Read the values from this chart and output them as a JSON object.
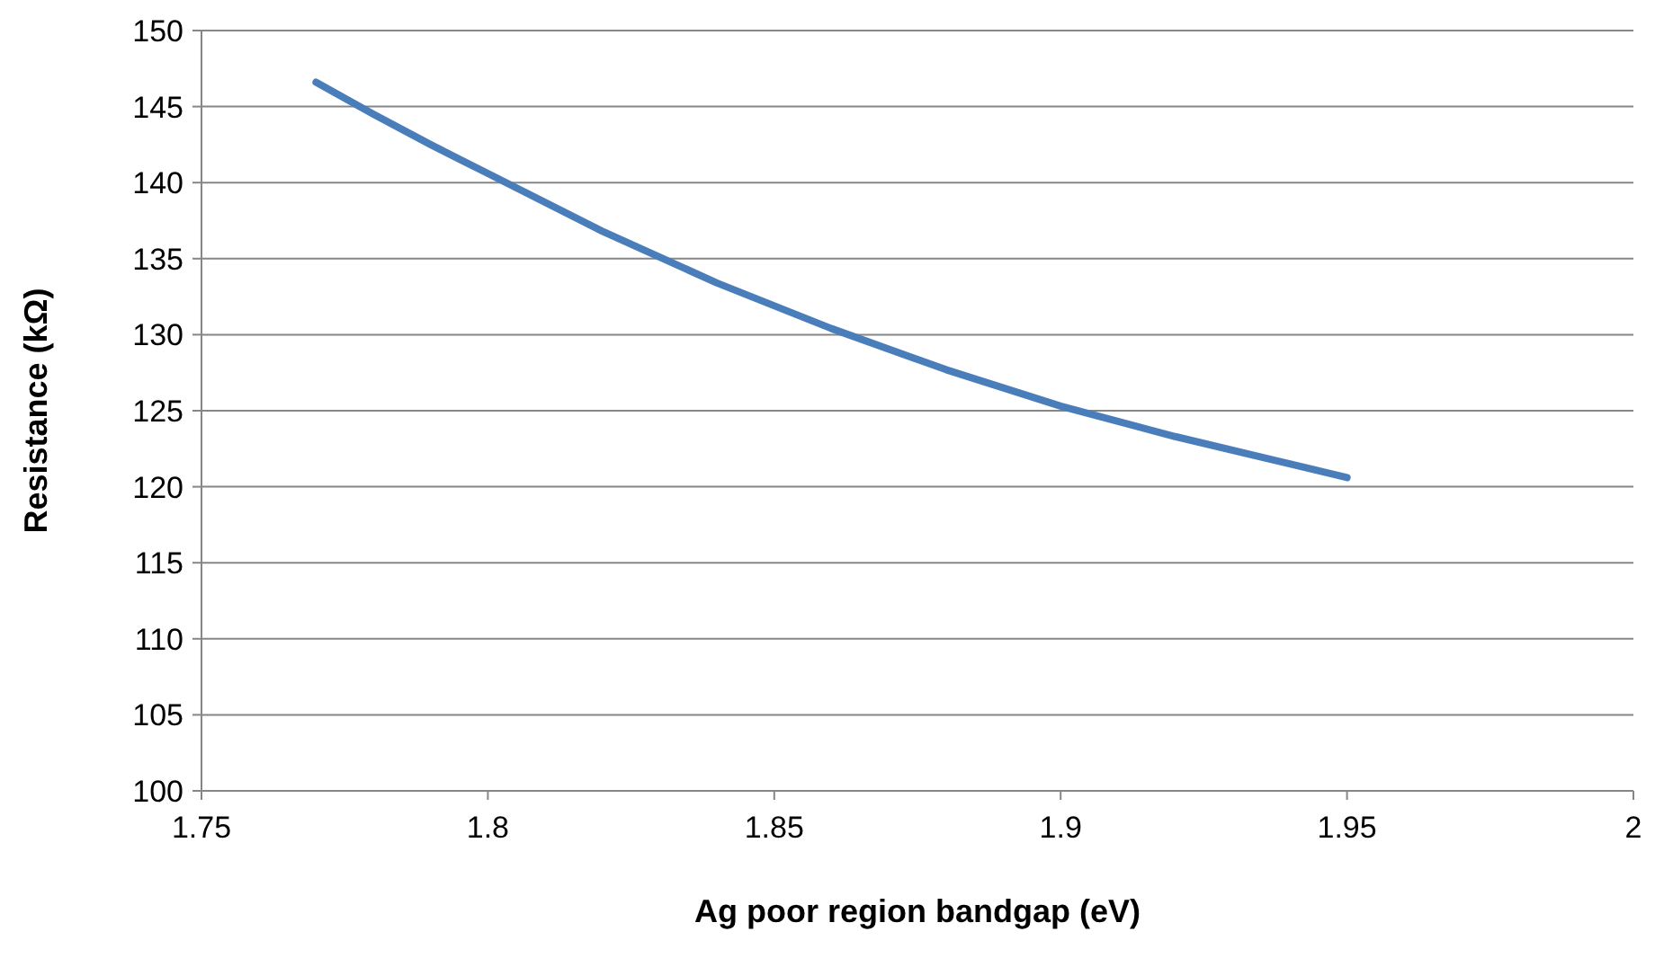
{
  "chart_data": {
    "type": "line",
    "xlabel": "Ag poor region bandgap (eV)",
    "ylabel": "Resistance (kΩ)",
    "x": [
      1.77,
      1.78,
      1.79,
      1.8,
      1.82,
      1.84,
      1.86,
      1.88,
      1.9,
      1.92,
      1.94,
      1.95
    ],
    "series": [
      {
        "color": "#4a7ebb",
        "values": [
          146.6,
          144.5,
          142.5,
          140.6,
          136.8,
          133.4,
          130.4,
          127.7,
          125.3,
          123.3,
          121.5,
          120.6
        ]
      }
    ],
    "xlim": [
      1.75,
      2
    ],
    "xticks": [
      1.75,
      1.8,
      1.85,
      1.9,
      1.95,
      2
    ],
    "ylim": [
      100,
      150
    ],
    "yticks": [
      100,
      105,
      110,
      115,
      120,
      125,
      130,
      135,
      140,
      145,
      150
    ],
    "grid": "y",
    "marker": "none",
    "line_style": "solid"
  }
}
